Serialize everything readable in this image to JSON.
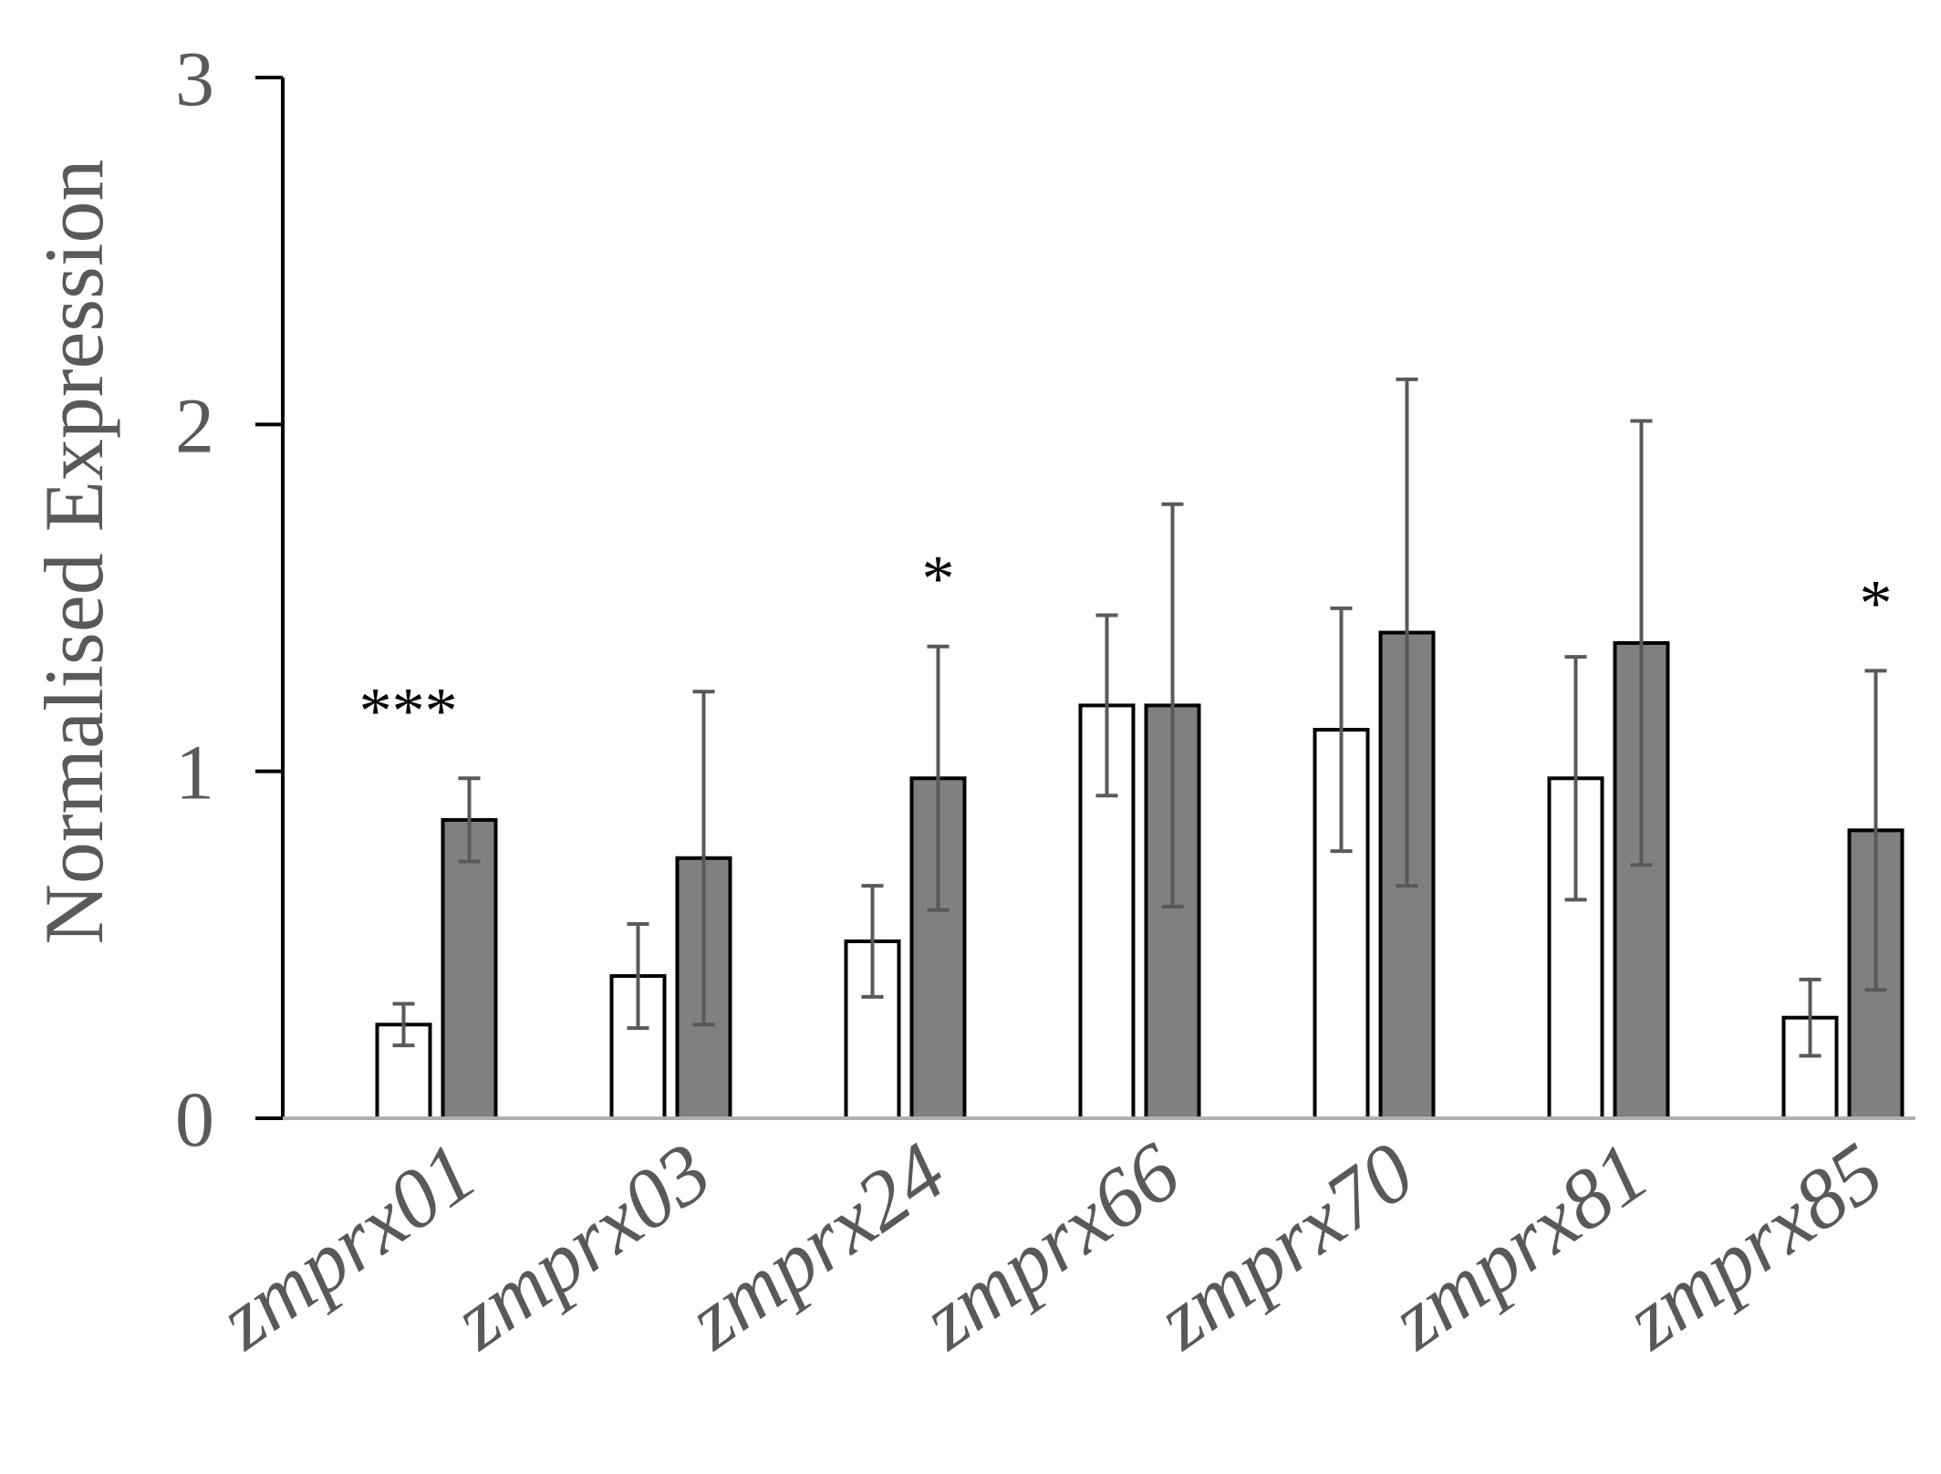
{
  "chart_data": {
    "type": "bar",
    "title": "",
    "xlabel": "",
    "ylabel": "Normalised Expression",
    "ylim": [
      0,
      3
    ],
    "yticks": [
      "0",
      "1",
      "2",
      "3"
    ],
    "grid": false,
    "legend": "none",
    "categories": [
      "zmprx01",
      "zmprx03",
      "zmprx24",
      "zmprx66",
      "zmprx70",
      "zmprx81",
      "zmprx85"
    ],
    "series": [
      {
        "fill": "#ffffff",
        "values": [
          0.27,
          0.41,
          0.51,
          1.19,
          1.12,
          0.98,
          0.29
        ],
        "errors": [
          0.06,
          0.15,
          0.16,
          0.26,
          0.35,
          0.35,
          0.11
        ]
      },
      {
        "fill": "#808080",
        "values": [
          0.86,
          0.75,
          0.98,
          1.19,
          1.4,
          1.37,
          0.83
        ],
        "errors": [
          0.12,
          0.48,
          0.38,
          0.58,
          0.73,
          0.64,
          0.46
        ]
      }
    ],
    "significance": [
      "***",
      "",
      "*",
      "",
      "",
      "",
      "*"
    ]
  }
}
